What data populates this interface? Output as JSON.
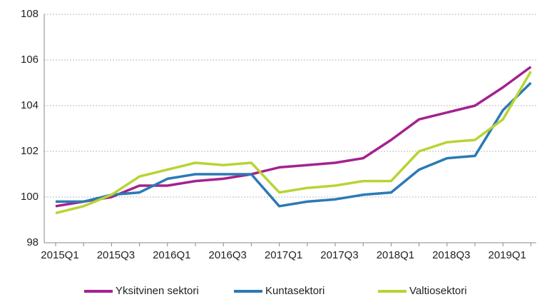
{
  "chart_data": {
    "type": "line",
    "categories": [
      "2015Q1",
      null,
      "2015Q3",
      null,
      "2016Q1",
      null,
      "2016Q3",
      null,
      "2017Q1",
      null,
      "2017Q3",
      null,
      "2018Q1",
      null,
      "2018Q3",
      null,
      "2019Q1",
      null
    ],
    "series": [
      {
        "name": "Yksitvinen sektori",
        "color": "#a5218f",
        "values": [
          99.6,
          99.8,
          100.0,
          100.5,
          100.5,
          100.7,
          100.8,
          101.0,
          101.3,
          101.4,
          101.5,
          101.7,
          102.5,
          103.4,
          103.7,
          104.0,
          104.8,
          105.7
        ]
      },
      {
        "name": "Kuntasektori",
        "color": "#2a7ab5",
        "values": [
          99.8,
          99.8,
          100.1,
          100.2,
          100.8,
          101.0,
          101.0,
          101.0,
          99.6,
          99.8,
          99.9,
          100.1,
          100.2,
          101.2,
          101.7,
          101.8,
          103.8,
          105.0
        ]
      },
      {
        "name": "Valtiosektori",
        "color": "#b8d433",
        "values": [
          99.3,
          99.6,
          100.1,
          100.9,
          101.2,
          101.5,
          101.4,
          101.5,
          100.2,
          100.4,
          100.5,
          100.7,
          100.7,
          102.0,
          102.4,
          102.5,
          103.4,
          105.5
        ]
      }
    ],
    "ylim": [
      98,
      108
    ],
    "yticks": [
      98,
      100,
      102,
      104,
      106,
      108
    ],
    "grid": true,
    "legend": "bottom"
  }
}
